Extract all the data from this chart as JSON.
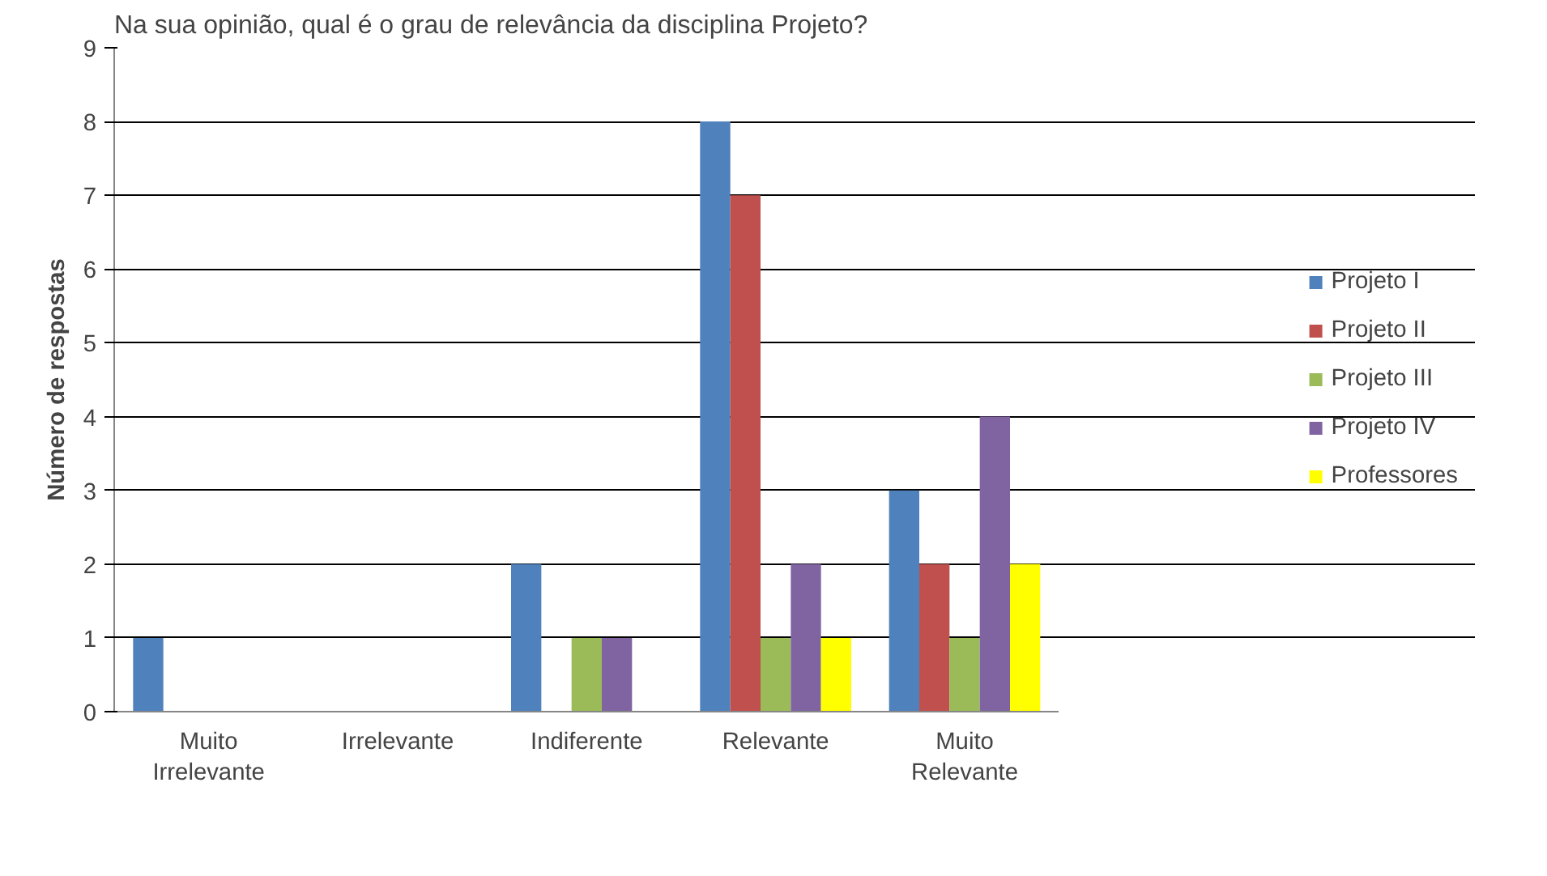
{
  "chart_data": {
    "type": "bar",
    "title": "Na sua opinião, qual é o grau de relevância da disciplina Projeto?",
    "ylabel": "Número de respostas",
    "categories": [
      [
        "Muito",
        "Irrelevante"
      ],
      "Irrelevante",
      "Indiferente",
      "Relevante",
      [
        "Muito",
        "Relevante"
      ]
    ],
    "series": [
      {
        "name": "Projeto I",
        "color": "#4f81bd",
        "values": [
          1,
          0,
          2,
          8,
          3
        ]
      },
      {
        "name": "Projeto II",
        "color": "#c0504d",
        "values": [
          0,
          0,
          0,
          7,
          2
        ]
      },
      {
        "name": "Projeto III",
        "color": "#9bbb59",
        "values": [
          0,
          0,
          1,
          1,
          1
        ]
      },
      {
        "name": "Projeto IV",
        "color": "#8064a2",
        "values": [
          0,
          0,
          1,
          2,
          4
        ]
      },
      {
        "name": "Professores",
        "color": "#ffff00",
        "values": [
          0,
          0,
          0,
          1,
          2
        ]
      }
    ],
    "ylim": [
      0,
      9
    ],
    "yticks": [
      0,
      1,
      2,
      3,
      4,
      5,
      6,
      7,
      8,
      9
    ],
    "grid": "y",
    "legend": "right"
  }
}
